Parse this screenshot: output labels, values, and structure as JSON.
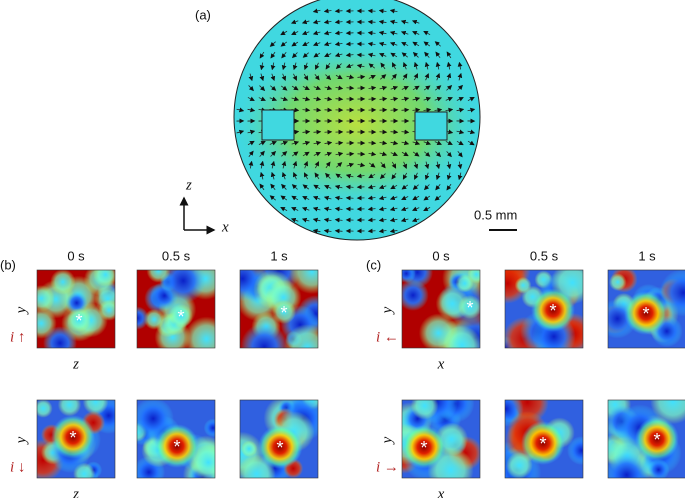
{
  "panel_a": {
    "label": "(a)",
    "axis_z": "z",
    "axis_x": "x",
    "scale_bar": "0.5 mm"
  },
  "panel_b": {
    "label": "(b)",
    "times": [
      "0 s",
      "0.5 s",
      "1 s"
    ],
    "marker": "*",
    "rows": [
      {
        "y_label": "y",
        "current": "i ↑",
        "x_label": "z"
      },
      {
        "y_label": "y",
        "current": "i ↓",
        "x_label": "z"
      }
    ]
  },
  "panel_c": {
    "label": "(c)",
    "times": [
      "0 s",
      "0.5 s",
      "1 s"
    ],
    "marker": "*",
    "rows": [
      {
        "y_label": "y",
        "current": "i ←",
        "x_label": "x"
      },
      {
        "y_label": "y",
        "current": "i →",
        "x_label": "x"
      }
    ]
  }
}
